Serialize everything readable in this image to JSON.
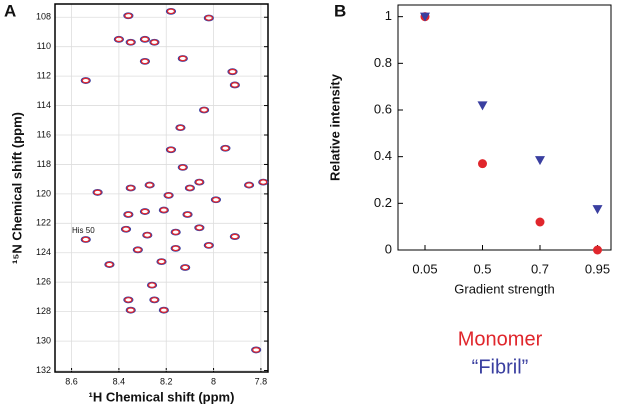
{
  "chart_data": [
    {
      "type": "scatter",
      "label": "A",
      "title_x": "¹H Chemical shift (ppm)",
      "title_y": "¹⁵N Chemical shift (ppm)",
      "annotation": "His 50",
      "xlim": [
        8.67,
        7.77
      ],
      "ylim": [
        107.1,
        132.1
      ],
      "xticks": [
        8.6,
        8.4,
        8.2,
        8.0,
        7.8
      ],
      "yticks": [
        108,
        110,
        112,
        114,
        116,
        118,
        120,
        122,
        124,
        126,
        128,
        130,
        132
      ],
      "grid": true,
      "x": [
        8.36,
        8.18,
        8.02,
        8.4,
        8.35,
        8.29,
        8.25,
        8.29,
        8.13,
        7.92,
        7.91,
        8.54,
        8.04,
        8.14,
        8.18,
        7.95,
        8.13,
        8.06,
        7.85,
        7.79,
        8.49,
        8.35,
        8.27,
        8.19,
        8.1,
        7.99,
        8.36,
        8.29,
        8.21,
        8.11,
        8.37,
        8.28,
        8.16,
        8.06,
        7.91,
        8.54,
        8.32,
        8.16,
        8.02,
        8.44,
        8.22,
        8.12,
        8.36,
        8.26,
        8.25,
        8.21,
        8.35,
        7.82
      ],
      "series": [
        {
          "name": "Fibril",
          "color": "#3a3fa0",
          "values": [
            107.9,
            107.6,
            108.05,
            109.5,
            109.7,
            109.5,
            109.7,
            111.0,
            110.8,
            111.7,
            112.6,
            112.3,
            114.3,
            115.5,
            117.0,
            116.9,
            118.2,
            119.2,
            119.4,
            119.2,
            119.9,
            119.6,
            119.4,
            120.1,
            119.6,
            120.4,
            121.4,
            121.2,
            121.1,
            121.4,
            122.4,
            122.8,
            122.6,
            122.3,
            122.9,
            123.1,
            123.8,
            123.7,
            123.5,
            124.8,
            124.6,
            125.0,
            127.2,
            126.2,
            127.2,
            127.9,
            127.9,
            130.6
          ]
        },
        {
          "name": "Monomer",
          "color": "#e0262c",
          "values": [
            107.9,
            107.6,
            108.05,
            109.5,
            109.7,
            109.5,
            109.7,
            111.0,
            110.8,
            111.7,
            112.6,
            112.3,
            114.3,
            115.5,
            117.0,
            116.9,
            118.2,
            119.2,
            119.4,
            119.2,
            119.9,
            119.6,
            119.4,
            120.1,
            119.6,
            120.4,
            121.4,
            121.2,
            121.1,
            121.4,
            122.4,
            122.8,
            122.6,
            122.3,
            122.9,
            123.1,
            123.8,
            123.7,
            123.5,
            124.8,
            124.6,
            125.0,
            127.2,
            126.2,
            127.2,
            127.9,
            127.9,
            130.6
          ]
        }
      ]
    },
    {
      "type": "dot",
      "label": "B",
      "title_x": "Gradient strength",
      "title_y": "Relative intensity",
      "categories": [
        "0.05",
        "0.5",
        "0.7",
        "0.95"
      ],
      "ylim": [
        0,
        1.05
      ],
      "yticks": [
        0,
        0.2,
        0.4,
        0.6,
        0.8,
        1
      ],
      "series": [
        {
          "name": "Monomer",
          "color": "#e0262c",
          "marker": "circle",
          "values": [
            1.0,
            0.37,
            0.12,
            0.0
          ]
        },
        {
          "name": "“Fibril”",
          "color": "#3a3fa0",
          "marker": "triangle",
          "values": [
            1.0,
            0.62,
            0.385,
            0.175
          ]
        }
      ]
    }
  ]
}
